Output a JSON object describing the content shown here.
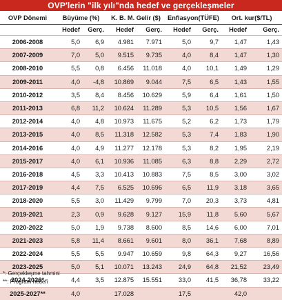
{
  "title": "OVP'lerin \"ilk yılı\"nda hedef ve gerçekleşmeler",
  "headers": {
    "period": "OVP Dönemi",
    "groups": [
      "Büyüme (%)",
      "K. B. M. Gelir ($)",
      "Enflasyon(TÜFE)",
      "Ort. kur($/TL)"
    ],
    "sub_target": "Hedef",
    "sub_actual": "Gerç."
  },
  "rows": [
    {
      "period": "2006-2008",
      "v": [
        "5,0",
        "6,9",
        "4.981",
        "7.971",
        "5,0",
        "9,7",
        "1,47",
        "1,43"
      ]
    },
    {
      "period": "2007-2009",
      "v": [
        "7,0",
        "5,0",
        "9.515",
        "9.735",
        "4,0",
        "8,4",
        "1,47",
        "1,30"
      ]
    },
    {
      "period": "2008-2010",
      "v": [
        "5,5",
        "0,8",
        "6.456",
        "11.018",
        "4,0",
        "10,1",
        "1,49",
        "1,29"
      ]
    },
    {
      "period": "2009-2011",
      "v": [
        "4,0",
        "-4,8",
        "10.869",
        "9.044",
        "7,5",
        "6,5",
        "1,43",
        "1,55"
      ]
    },
    {
      "period": "2010-2012",
      "v": [
        "3,5",
        "8,4",
        "8.456",
        "10.629",
        "5,9",
        "6,4",
        "1,61",
        "1,50"
      ]
    },
    {
      "period": "2011-2013",
      "v": [
        "6,8",
        "11,2",
        "10.624",
        "11.289",
        "5,3",
        "10,5",
        "1,56",
        "1,67"
      ]
    },
    {
      "period": "2012-2014",
      "v": [
        "4,0",
        "4,8",
        "10.973",
        "11.675",
        "5,2",
        "6,2",
        "1,73",
        "1,79"
      ]
    },
    {
      "period": "2013-2015",
      "v": [
        "4,0",
        "8,5",
        "11.318",
        "12.582",
        "5,3",
        "7,4",
        "1,83",
        "1,90"
      ]
    },
    {
      "period": "2014-2016",
      "v": [
        "4,0",
        "4,9",
        "11.277",
        "12.178",
        "5,3",
        "8,2",
        "1,95",
        "2,19"
      ]
    },
    {
      "period": "2015-2017",
      "v": [
        "4,0",
        "6,1",
        "10.936",
        "11.085",
        "6,3",
        "8,8",
        "2,29",
        "2,72"
      ]
    },
    {
      "period": "2016-2018",
      "v": [
        "4,5",
        "3,3",
        "10.413",
        "10.883",
        "7,5",
        "8,5",
        "3,00",
        "3,02"
      ]
    },
    {
      "period": "2017-2019",
      "v": [
        "4,4",
        "7,5",
        "6.525",
        "10.696",
        "6,5",
        "11,9",
        "3,18",
        "3,65"
      ]
    },
    {
      "period": "2018-2020",
      "v": [
        "5,5",
        "3,0",
        "11.429",
        "9.799",
        "7,0",
        "20,3",
        "3,73",
        "4,81"
      ]
    },
    {
      "period": "2019-2021",
      "v": [
        "2,3",
        "0,9",
        "9.628",
        "9.127",
        "15,9",
        "11,8",
        "5,60",
        "5,67"
      ]
    },
    {
      "period": "2020-2022",
      "v": [
        "5,0",
        "1,9",
        "9.738",
        "8.600",
        "8,5",
        "14,6",
        "6,00",
        "7,01"
      ]
    },
    {
      "period": "2021-2023",
      "v": [
        "5,8",
        "11,4",
        "8.661",
        "9.601",
        "8,0",
        "36,1",
        "7,68",
        "8,89"
      ]
    },
    {
      "period": "2022-2024",
      "v": [
        "5,5",
        "5,5",
        "9.947",
        "10.659",
        "9,8",
        "64,3",
        "9,27",
        "16,56"
      ]
    },
    {
      "period": "2023-2025",
      "v": [
        "5,0",
        "5,1",
        "10.071",
        "13.243",
        "24,9",
        "64,8",
        "21,52",
        "23,49"
      ]
    },
    {
      "period": "2024-2026*",
      "v": [
        "4,4",
        "3,5",
        "12.875",
        "15.551",
        "33,0",
        "41,5",
        "36,78",
        "33,22"
      ]
    },
    {
      "period": "2025-2027**",
      "v": [
        "4,0",
        "",
        "17.028",
        "",
        "17,5",
        "",
        "42,0",
        ""
      ]
    }
  ],
  "notes": [
    "*: Gerçekleşme tahmini",
    "**: Program hedefi"
  ]
}
